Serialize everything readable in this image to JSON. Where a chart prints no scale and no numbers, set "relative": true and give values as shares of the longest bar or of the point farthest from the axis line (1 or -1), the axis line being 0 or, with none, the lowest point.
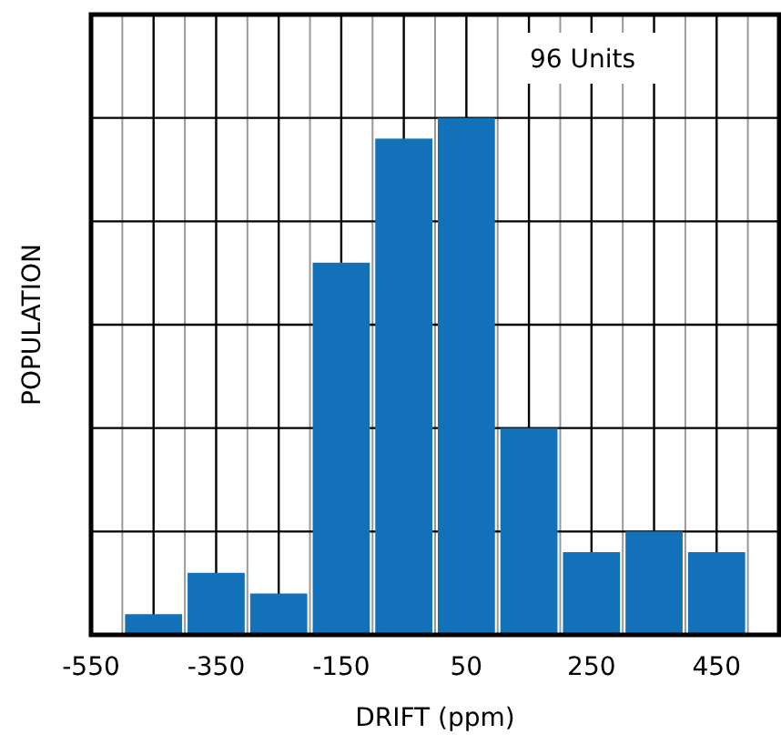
{
  "chart_data": {
    "type": "bar",
    "relative": true,
    "xlabel": "DRIFT (ppm)",
    "ylabel": "POPULATION",
    "annotations": [
      "96 Units"
    ],
    "x": [
      -450,
      -350,
      -250,
      -150,
      -50,
      50,
      150,
      250,
      350,
      450
    ],
    "values": [
      0.04,
      0.12,
      0.08,
      0.72,
      0.96,
      1,
      0.4,
      0.16,
      0.2,
      0.16
    ],
    "color": "#1271b8",
    "xlim": [
      -550,
      550
    ],
    "xticks": [
      -550,
      -350,
      -150,
      50,
      250,
      450
    ],
    "grid": true
  }
}
